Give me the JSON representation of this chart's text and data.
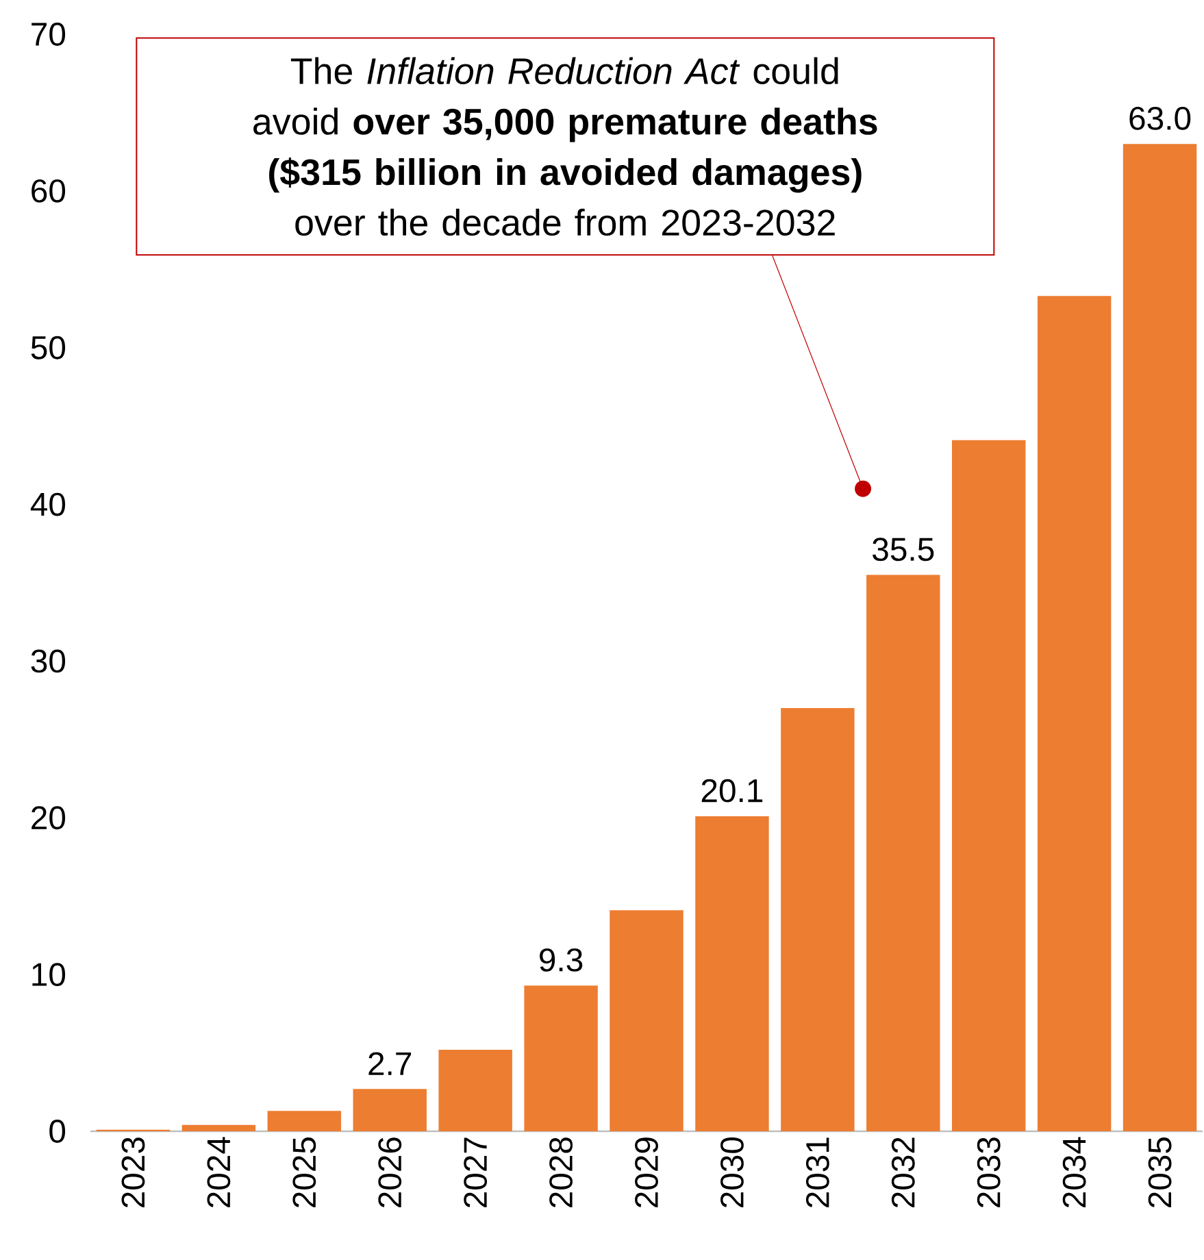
{
  "chart_data": {
    "type": "bar",
    "categories": [
      "2023",
      "2024",
      "2025",
      "2026",
      "2027",
      "2028",
      "2029",
      "2030",
      "2031",
      "2032",
      "2033",
      "2034",
      "2035"
    ],
    "values": [
      0.1,
      0.4,
      1.3,
      2.7,
      5.2,
      9.3,
      14.1,
      20.1,
      27.0,
      35.5,
      44.1,
      53.3,
      63.0
    ],
    "value_labels": [
      null,
      null,
      null,
      "2.7",
      null,
      "9.3",
      null,
      "20.1",
      null,
      "35.5",
      null,
      null,
      "63.0"
    ],
    "color": "#ed7d31",
    "ylim": [
      0,
      70
    ],
    "yticks": [
      0,
      10,
      20,
      30,
      40,
      50,
      60,
      70
    ],
    "annotations": [
      "The *Inflation Reduction Act* could avoid **over 35,000 premature deaths ($315 billion in avoided damages)** over the decade from 2023-2032"
    ]
  }
}
